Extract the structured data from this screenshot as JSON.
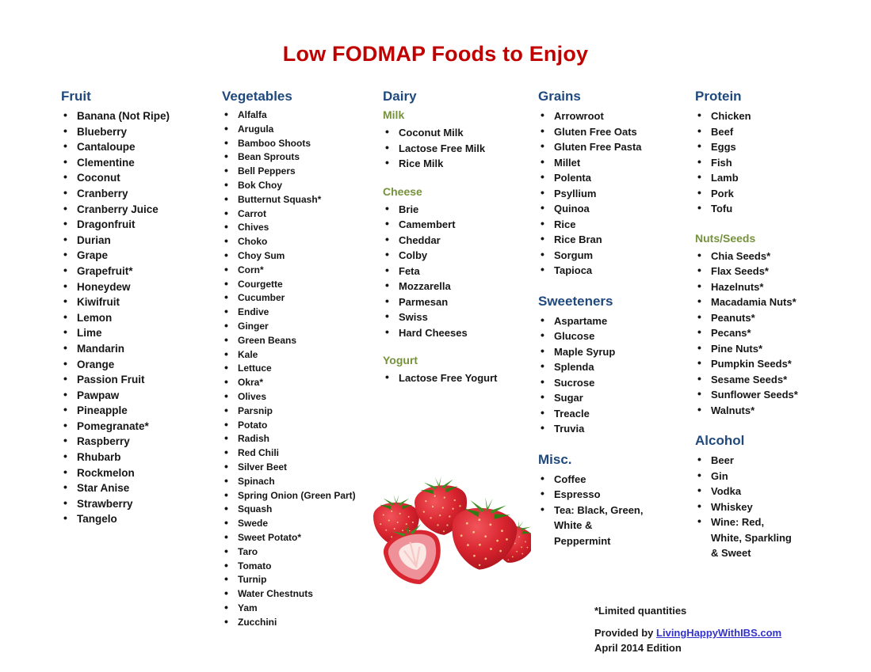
{
  "title": "Low FODMAP Foods to Enjoy",
  "colors": {
    "title": "#C00000",
    "section_header": "#1F497D",
    "sub_header": "#76923C",
    "link": "#3333CC"
  },
  "columns": [
    {
      "sections": [
        {
          "header": "Fruit",
          "style": "main",
          "items": [
            "Banana (Not Ripe)",
            "Blueberry",
            "Cantaloupe",
            "Clementine",
            "Coconut",
            "Cranberry",
            "Cranberry Juice",
            "Dragonfruit",
            "Durian",
            "Grape",
            "Grapefruit*",
            "Honeydew",
            "Kiwifruit",
            "Lemon",
            "Lime",
            "Mandarin",
            "Orange",
            "Passion Fruit",
            "Pawpaw",
            "Pineapple",
            "Pomegranate*",
            "Raspberry",
            "Rhubarb",
            "Rockmelon",
            "Star Anise",
            "Strawberry",
            "Tangelo"
          ]
        }
      ]
    },
    {
      "sections": [
        {
          "header": "Vegetables",
          "style": "main",
          "items": [
            "Alfalfa",
            "Arugula",
            "Bamboo Shoots",
            "Bean Sprouts",
            "Bell Peppers",
            "Bok Choy",
            "Butternut Squash*",
            "Carrot",
            "Chives",
            "Choko",
            "Choy Sum",
            "Corn*",
            "Courgette",
            "Cucumber",
            "Endive",
            "Ginger",
            "Green Beans",
            "Kale",
            "Lettuce",
            "Okra*",
            "Olives",
            "Parsnip",
            "Potato",
            "Radish",
            "Red Chili",
            "Silver Beet",
            "Spinach",
            "Spring Onion (Green Part)",
            "Squash",
            "Swede",
            "Sweet Potato*",
            "Taro",
            "Tomato",
            "Turnip",
            "Water Chestnuts",
            "Yam",
            "Zucchini"
          ]
        }
      ]
    },
    {
      "sections": [
        {
          "header": "Dairy",
          "style": "main",
          "items": []
        },
        {
          "header": "Milk",
          "style": "sub",
          "items": [
            "Coconut Milk",
            "Lactose Free Milk",
            "Rice Milk"
          ]
        },
        {
          "header": "Cheese",
          "style": "sub",
          "items": [
            "Brie",
            "Camembert",
            "Cheddar",
            "Colby",
            "Feta",
            "Mozzarella",
            "Parmesan",
            "Swiss",
            "Hard Cheeses"
          ]
        },
        {
          "header": "Yogurt",
          "style": "sub",
          "items": [
            "Lactose Free Yogurt"
          ]
        }
      ]
    },
    {
      "sections": [
        {
          "header": "Grains",
          "style": "main",
          "items": [
            "Arrowroot",
            "Gluten Free Oats",
            "Gluten Free Pasta",
            "Millet",
            "Polenta",
            "Psyllium",
            "Quinoa",
            "Rice",
            "Rice Bran",
            "Sorgum",
            "Tapioca"
          ]
        },
        {
          "header": "Sweeteners",
          "style": "main",
          "items": [
            "Aspartame",
            "Glucose",
            "Maple Syrup",
            "Splenda",
            "Sucrose",
            "Sugar",
            "Treacle",
            "Truvia"
          ]
        },
        {
          "header": "Misc.",
          "style": "main",
          "items": [
            "Coffee",
            "Espresso",
            "Tea: Black, Green,\nWhite &\nPeppermint"
          ]
        }
      ]
    },
    {
      "sections": [
        {
          "header": "Protein",
          "style": "main",
          "items": [
            "Chicken",
            "Beef",
            "Eggs",
            "Fish",
            "Lamb",
            "Pork",
            "Tofu"
          ]
        },
        {
          "header": "Nuts/Seeds",
          "style": "sub",
          "items": [
            "Chia Seeds*",
            "Flax Seeds*",
            "Hazelnuts*",
            "Macadamia Nuts*",
            "Peanuts*",
            "Pecans*",
            "Pine Nuts*",
            "Pumpkin Seeds*",
            "Sesame Seeds*",
            "Sunflower Seeds*",
            "Walnuts*"
          ]
        },
        {
          "header": "Alcohol",
          "style": "main",
          "items": [
            "Beer",
            "Gin",
            "Vodka",
            "Whiskey",
            "Wine: Red,\nWhite, Sparkling\n& Sweet"
          ]
        }
      ]
    }
  ],
  "image": {
    "description": "strawberries photo"
  },
  "footer": {
    "note": "*Limited quantities",
    "provided_prefix": "Provided by ",
    "link_text": "LivingHappyWithIBS.com",
    "edition": "April 2014 Edition"
  }
}
